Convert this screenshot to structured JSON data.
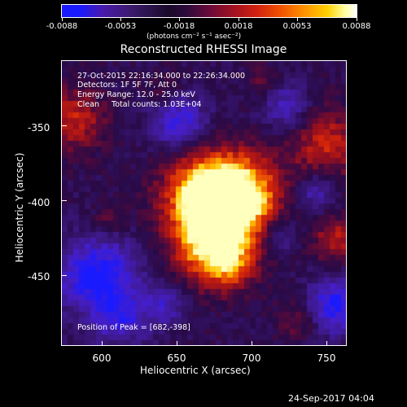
{
  "colorbar": {
    "ticks": [
      "-0.0088",
      "-0.0053",
      "-0.0018",
      "0.0018",
      "0.0053",
      "0.0088"
    ],
    "unit_label": "(photons cm⁻² s⁻¹ asec⁻²)"
  },
  "title": "Reconstructed RHESSI Image",
  "info": {
    "line1": "27-Oct-2015 22:16:34.000 to 22:26:34.000",
    "line2": "Detectors: 1F 5F 7F, Att 0",
    "line3": "Energy Range: 12.0 - 25.0 keV",
    "line4": "Clean     Total counts: 1.03E+04",
    "peak": "Position of Peak = [682,-398]"
  },
  "axes": {
    "x_label": "Heliocentric X (arcsec)",
    "y_label": "Heliocentric Y (arcsec)",
    "x_ticks": [
      "600",
      "650",
      "700",
      "750"
    ],
    "y_ticks": [
      "-350",
      "-400",
      "-450"
    ]
  },
  "footer_date": "24-Sep-2017 04:04"
}
